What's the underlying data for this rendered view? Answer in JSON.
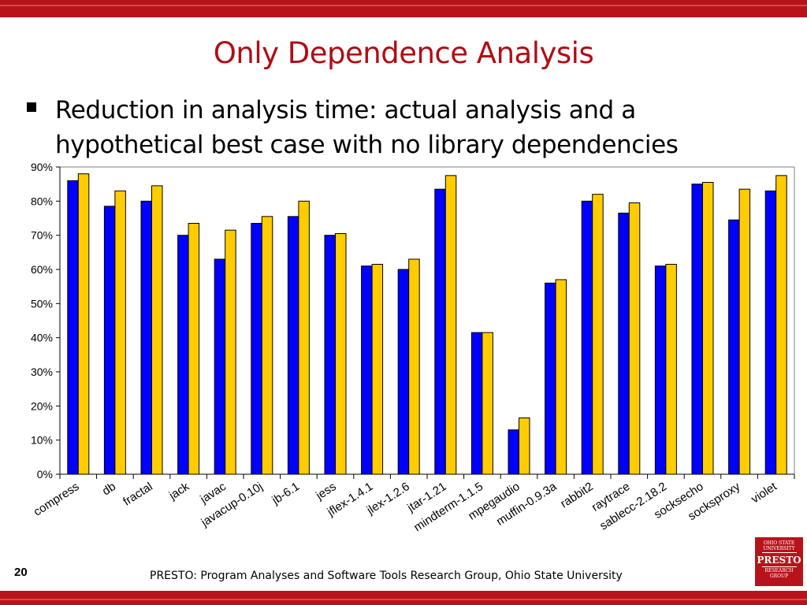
{
  "slide": {
    "title": "Only Dependence Analysis",
    "bullet_line1": "Reduction in analysis time: actual analysis and a",
    "bullet_line2": "hypothetical best case with no library dependencies",
    "page_number": "20",
    "footer": "PRESTO: Program Analyses and Software Tools Research Group, Ohio State University",
    "logo": {
      "line1": "OHIO STATE",
      "line2": "UNIVERSITY",
      "name": "PRESTO",
      "line3": "RESEARCH",
      "line4": "GROUP"
    },
    "colors": {
      "brand_red": "#b8131b",
      "title_red": "#b00d14"
    }
  },
  "chart_data": {
    "type": "bar",
    "categories": [
      "compress",
      "db",
      "fractal",
      "jack",
      "javac",
      "javacup-0.10j",
      "jb-6.1",
      "jess",
      "jflex-1.4.1",
      "jlex-1.2.6",
      "jtar-1.21",
      "mindterm-1.1.5",
      "mpegaudio",
      "muffin-0.9.3a",
      "rabbit2",
      "raytrace",
      "sablecc-2.18.2",
      "socksecho",
      "socksproxy",
      "violet"
    ],
    "series": [
      {
        "color": "#0000ff",
        "values": [
          86,
          78.5,
          80,
          70,
          63,
          73.5,
          75.5,
          70,
          61,
          60,
          83.5,
          41.5,
          13,
          56,
          80,
          76.5,
          61,
          85,
          74.5,
          83
        ]
      },
      {
        "color": "#ffcc00",
        "values": [
          88,
          83,
          84.5,
          73.5,
          71.5,
          75.5,
          80,
          70.5,
          61.5,
          63,
          87.5,
          41.5,
          16.5,
          57,
          82,
          79.5,
          61.5,
          85.5,
          83.5,
          87.5
        ]
      }
    ],
    "ylim": [
      0,
      90
    ],
    "yticks": [
      "0%",
      "10%",
      "20%",
      "30%",
      "40%",
      "50%",
      "60%",
      "70%",
      "80%",
      "90%"
    ],
    "grid": false,
    "legend": "none"
  }
}
